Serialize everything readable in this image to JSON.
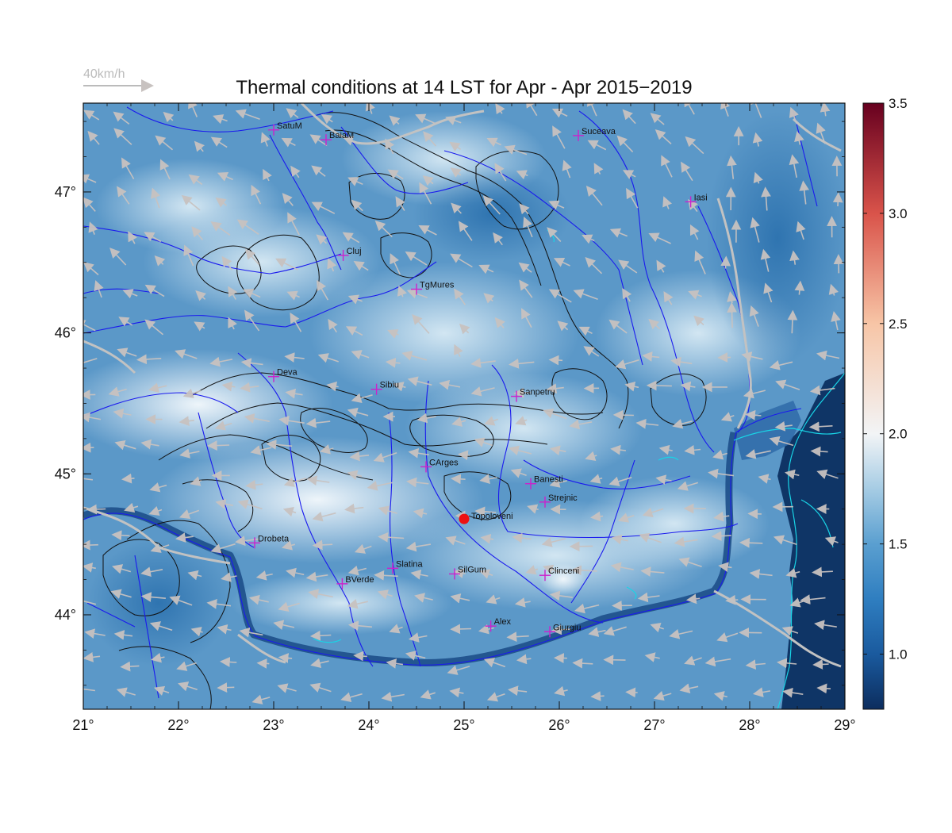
{
  "title": "Thermal conditions at 14 LST for Apr - Apr  2015−2019",
  "wind_legend": {
    "label": "40km/h",
    "color": "#bbbbbb"
  },
  "map": {
    "lon_range": [
      21,
      29
    ],
    "lat_range": [
      43.33,
      47.63
    ],
    "lon_ticks": [
      {
        "value": 21,
        "label": "21°"
      },
      {
        "value": 22,
        "label": "22°"
      },
      {
        "value": 23,
        "label": "23°"
      },
      {
        "value": 24,
        "label": "24°"
      },
      {
        "value": 25,
        "label": "25°"
      },
      {
        "value": 26,
        "label": "26°"
      },
      {
        "value": 27,
        "label": "27°"
      },
      {
        "value": 28,
        "label": "28°"
      },
      {
        "value": 29,
        "label": "29°"
      }
    ],
    "lat_ticks": [
      {
        "value": 44,
        "label": "44°"
      },
      {
        "value": 45,
        "label": "45°"
      },
      {
        "value": 46,
        "label": "46°"
      },
      {
        "value": 47,
        "label": "47°"
      }
    ],
    "colors": {
      "river": "#1a1aee",
      "contour": "#111111",
      "lake": "#19d4e6",
      "marker": "#cc22cc",
      "highlight": "#ee1111",
      "border": "#c2c2c2"
    },
    "cities": [
      {
        "name": "SatuM",
        "lon": 23.0,
        "lat": 47.44
      },
      {
        "name": "BaiaM",
        "lon": 23.55,
        "lat": 47.37
      },
      {
        "name": "Suceava",
        "lon": 26.2,
        "lat": 47.4
      },
      {
        "name": "Iasi",
        "lon": 27.38,
        "lat": 46.93
      },
      {
        "name": "Cluj",
        "lon": 23.73,
        "lat": 46.55
      },
      {
        "name": "TgMures",
        "lon": 24.5,
        "lat": 46.31
      },
      {
        "name": "Deva",
        "lon": 23.0,
        "lat": 45.69
      },
      {
        "name": "Sibiu",
        "lon": 24.08,
        "lat": 45.6
      },
      {
        "name": "Sanpetru",
        "lon": 25.55,
        "lat": 45.55
      },
      {
        "name": "CArges",
        "lon": 24.6,
        "lat": 45.05
      },
      {
        "name": "Banesti",
        "lon": 25.7,
        "lat": 44.93
      },
      {
        "name": "Strejnic",
        "lon": 25.85,
        "lat": 44.8
      },
      {
        "name": "Drobeta",
        "lon": 22.8,
        "lat": 44.51
      },
      {
        "name": "Slatina",
        "lon": 24.25,
        "lat": 44.33
      },
      {
        "name": "SilGum",
        "lon": 24.9,
        "lat": 44.29
      },
      {
        "name": "Clinceni",
        "lon": 25.85,
        "lat": 44.28
      },
      {
        "name": "BVerde",
        "lon": 23.72,
        "lat": 44.22
      },
      {
        "name": "Alex",
        "lon": 25.28,
        "lat": 43.92
      },
      {
        "name": "Giurgiu",
        "lon": 25.9,
        "lat": 43.88
      }
    ],
    "highlight": {
      "name": "Topoloveni",
      "lon": 25.0,
      "lat": 44.68
    }
  },
  "colorbar": {
    "min": 0.75,
    "max": 3.5,
    "ticks": [
      {
        "value": 1.0,
        "label": "1.0"
      },
      {
        "value": 1.5,
        "label": "1.5"
      },
      {
        "value": 2.0,
        "label": "2.0"
      },
      {
        "value": 2.5,
        "label": "2.5"
      },
      {
        "value": 3.0,
        "label": "3.0"
      },
      {
        "value": 3.5,
        "label": "3.5"
      }
    ],
    "stops": [
      {
        "value": 0.75,
        "color": "#0c2d5e"
      },
      {
        "value": 1.0,
        "color": "#1a5a9e"
      },
      {
        "value": 1.25,
        "color": "#2f7ec0"
      },
      {
        "value": 1.5,
        "color": "#5a9fd0"
      },
      {
        "value": 1.75,
        "color": "#a6cce4"
      },
      {
        "value": 2.0,
        "color": "#f2f4f6"
      },
      {
        "value": 2.5,
        "color": "#f7c5a6"
      },
      {
        "value": 3.0,
        "color": "#d9534a"
      },
      {
        "value": 3.5,
        "color": "#67001f"
      }
    ]
  }
}
